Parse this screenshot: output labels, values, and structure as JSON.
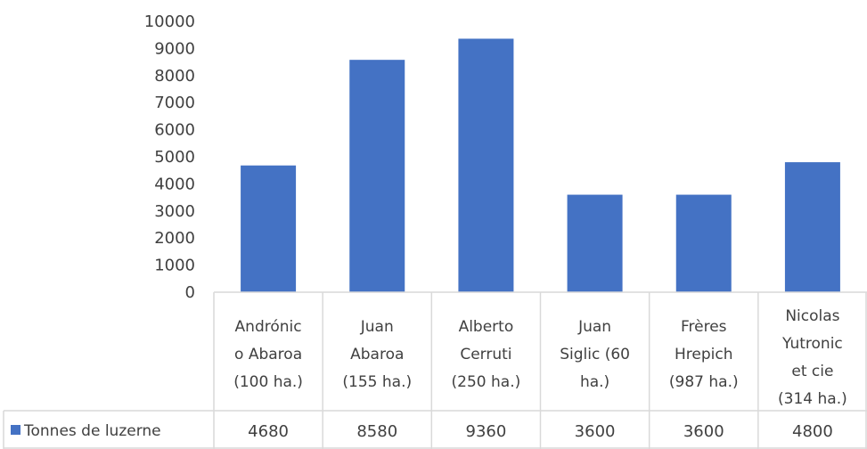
{
  "chart_data": {
    "type": "bar",
    "categories": [
      [
        "Andrónic",
        "o Abaroa",
        "(100 ha.)"
      ],
      [
        "Juan",
        "Abaroa",
        "(155 ha.)"
      ],
      [
        "Alberto",
        "Cerruti",
        "(250 ha.)"
      ],
      [
        "Juan",
        "Siglic (60",
        "ha.)"
      ],
      [
        "Frères",
        "Hrepich",
        "(987 ha.)"
      ],
      [
        "Nicolas",
        "Yutronic",
        "et cie",
        "(314 ha.)"
      ]
    ],
    "series": [
      {
        "name": "Tonnes de luzerne",
        "values": [
          4680,
          8580,
          9360,
          3600,
          3600,
          4800
        ],
        "color": "#4472C4"
      }
    ],
    "value_labels": [
      "4680",
      "8580",
      "9360",
      "3600",
      "3600",
      "4800"
    ],
    "yticks": [
      "0",
      "1000",
      "2000",
      "3000",
      "4000",
      "5000",
      "6000",
      "7000",
      "8000",
      "9000",
      "10000"
    ],
    "ylim": [
      0,
      10000
    ],
    "grid": false,
    "legend": "data-table"
  }
}
